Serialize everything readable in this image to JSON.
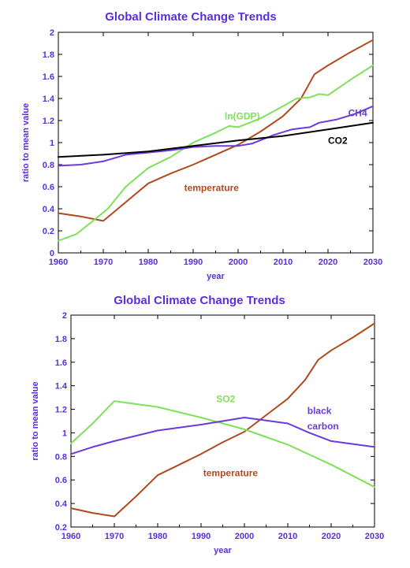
{
  "colors": {
    "text": "#5a2ee0",
    "axis": "#000000",
    "brown": "#b04a1e",
    "green": "#7fe05a",
    "purple": "#6a3ae0",
    "black": "#000000"
  },
  "chart_data": [
    {
      "type": "line",
      "title": "Global Climate Change Trends",
      "xlabel": "year",
      "ylabel": "ratio to mean value",
      "xlim": [
        1960,
        2030
      ],
      "ylim": [
        0,
        2
      ],
      "xticks": [
        "1960",
        "1970",
        "1980",
        "1990",
        "2000",
        "2010",
        "2020",
        "2030"
      ],
      "yticks": [
        "0",
        "0.2",
        "0.4",
        "0.6",
        "0.8",
        "1",
        "1.2",
        "1.4",
        "1.6",
        "1.8",
        "2"
      ],
      "grid": false,
      "series": [
        {
          "name": "temperature",
          "color": "#b04a1e",
          "points": [
            [
              1960,
              0.36
            ],
            [
              1965,
              0.33
            ],
            [
              1970,
              0.29
            ],
            [
              1975,
              0.46
            ],
            [
              1980,
              0.63
            ],
            [
              1985,
              0.72
            ],
            [
              1990,
              0.8
            ],
            [
              1995,
              0.89
            ],
            [
              2000,
              0.98
            ],
            [
              2005,
              1.1
            ],
            [
              2010,
              1.24
            ],
            [
              2014,
              1.4
            ],
            [
              2017,
              1.62
            ],
            [
              2020,
              1.7
            ],
            [
              2025,
              1.82
            ],
            [
              2030,
              1.93
            ]
          ]
        },
        {
          "name": "ln(GDP)",
          "color": "#7fe05a",
          "points": [
            [
              1960,
              0.11
            ],
            [
              1964,
              0.17
            ],
            [
              1968,
              0.3
            ],
            [
              1971,
              0.4
            ],
            [
              1975,
              0.6
            ],
            [
              1980,
              0.77
            ],
            [
              1985,
              0.87
            ],
            [
              1990,
              1.0
            ],
            [
              1995,
              1.09
            ],
            [
              1998,
              1.15
            ],
            [
              2000,
              1.14
            ],
            [
              2005,
              1.22
            ],
            [
              2010,
              1.33
            ],
            [
              2013,
              1.4
            ],
            [
              2016,
              1.41
            ],
            [
              2018,
              1.44
            ],
            [
              2020,
              1.43
            ],
            [
              2025,
              1.57
            ],
            [
              2030,
              1.7
            ]
          ]
        },
        {
          "name": "CH4",
          "color": "#6a3ae0",
          "points": [
            [
              1960,
              0.79
            ],
            [
              1965,
              0.8
            ],
            [
              1970,
              0.83
            ],
            [
              1975,
              0.89
            ],
            [
              1980,
              0.91
            ],
            [
              1985,
              0.93
            ],
            [
              1990,
              0.96
            ],
            [
              1995,
              0.97
            ],
            [
              2000,
              0.97
            ],
            [
              2003,
              0.99
            ],
            [
              2008,
              1.07
            ],
            [
              2012,
              1.12
            ],
            [
              2016,
              1.14
            ],
            [
              2018,
              1.18
            ],
            [
              2022,
              1.21
            ],
            [
              2026,
              1.26
            ],
            [
              2030,
              1.33
            ]
          ]
        },
        {
          "name": "CO2",
          "color": "#000000",
          "points": [
            [
              1960,
              0.87
            ],
            [
              1970,
              0.89
            ],
            [
              1980,
              0.92
            ],
            [
              1990,
              0.97
            ],
            [
              2000,
              1.02
            ],
            [
              2010,
              1.06
            ],
            [
              2020,
              1.12
            ],
            [
              2030,
              1.18
            ]
          ]
        }
      ],
      "annotations": [
        {
          "text": "ln(GDP)",
          "x": 1997,
          "y": 1.21,
          "series": "ln(GDP)"
        },
        {
          "text": "CH4",
          "x": 2024.5,
          "y": 1.24,
          "series": "CH4"
        },
        {
          "text": "CO2",
          "x": 2020,
          "y": 0.99,
          "series": "CO2"
        },
        {
          "text": "temperature",
          "x": 1988,
          "y": 0.56,
          "series": "temperature"
        }
      ]
    },
    {
      "type": "line",
      "title": "Global Climate Change Trends",
      "xlabel": "year",
      "ylabel": "ratio to mean value",
      "xlim": [
        1960,
        2030
      ],
      "ylim": [
        0.2,
        2
      ],
      "xticks": [
        "1960",
        "1970",
        "1980",
        "1990",
        "2000",
        "2010",
        "2020",
        "2030"
      ],
      "yticks": [
        "0.2",
        "0.4",
        "0.6",
        "0.8",
        "1",
        "1.2",
        "1.4",
        "1.6",
        "1.8",
        "2"
      ],
      "grid": false,
      "series": [
        {
          "name": "temperature",
          "color": "#b04a1e",
          "points": [
            [
              1960,
              0.36
            ],
            [
              1965,
              0.32
            ],
            [
              1970,
              0.29
            ],
            [
              1975,
              0.46
            ],
            [
              1980,
              0.64
            ],
            [
              1985,
              0.73
            ],
            [
              1990,
              0.82
            ],
            [
              1995,
              0.92
            ],
            [
              2000,
              1.01
            ],
            [
              2005,
              1.15
            ],
            [
              2010,
              1.29
            ],
            [
              2014,
              1.45
            ],
            [
              2017,
              1.62
            ],
            [
              2020,
              1.7
            ],
            [
              2025,
              1.81
            ],
            [
              2030,
              1.93
            ]
          ]
        },
        {
          "name": "SO2",
          "color": "#7fe05a",
          "points": [
            [
              1960,
              0.91
            ],
            [
              1965,
              1.08
            ],
            [
              1970,
              1.27
            ],
            [
              1980,
              1.22
            ],
            [
              1990,
              1.13
            ],
            [
              2000,
              1.03
            ],
            [
              2010,
              0.9
            ],
            [
              2020,
              0.73
            ],
            [
              2030,
              0.54
            ]
          ]
        },
        {
          "name": "black carbon",
          "color": "#6a3ae0",
          "points": [
            [
              1960,
              0.82
            ],
            [
              1965,
              0.88
            ],
            [
              1970,
              0.93
            ],
            [
              1980,
              1.02
            ],
            [
              1990,
              1.07
            ],
            [
              2000,
              1.13
            ],
            [
              2010,
              1.08
            ],
            [
              2015,
              1.0
            ],
            [
              2020,
              0.93
            ],
            [
              2030,
              0.88
            ]
          ]
        }
      ],
      "annotations": [
        {
          "text": "SO2",
          "x": 1993.5,
          "y": 1.26,
          "series": "SO2"
        },
        {
          "text": "black",
          "x": 2014.5,
          "y": 1.16,
          "series": "black carbon"
        },
        {
          "text": "carbon",
          "x": 2014.5,
          "y": 1.03,
          "series": "black carbon"
        },
        {
          "text": "temperature",
          "x": 1990.5,
          "y": 0.63,
          "series": "temperature"
        }
      ]
    }
  ]
}
